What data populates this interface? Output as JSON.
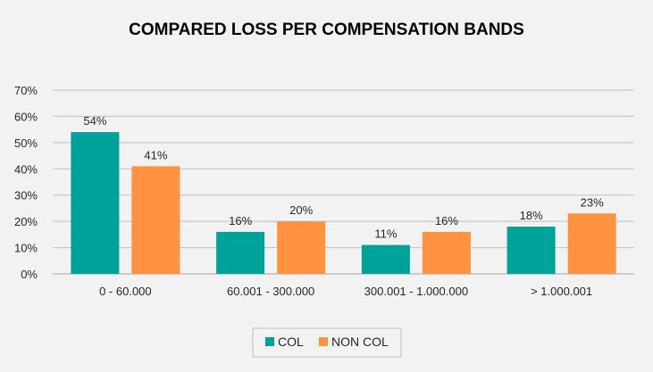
{
  "chart_data": {
    "type": "bar",
    "title": "COMPARED LOSS PER COMPENSATION BANDS",
    "categories": [
      "0 - 60.000",
      "60.001 - 300.000",
      "300.001 - 1.000.000",
      "> 1.000.001"
    ],
    "series": [
      {
        "name": "COL",
        "color": "#00a39a",
        "values": [
          54,
          16,
          11,
          18
        ],
        "labels": [
          "54%",
          "16%",
          "11%",
          "18%"
        ]
      },
      {
        "name": "NON COL",
        "color": "#ff9240",
        "values": [
          41,
          20,
          16,
          23
        ],
        "labels": [
          "41%",
          "20%",
          "16%",
          "23%"
        ]
      }
    ],
    "ylim": [
      0,
      70
    ],
    "yticks": [
      0,
      10,
      20,
      30,
      40,
      50,
      60,
      70
    ],
    "ytick_labels": [
      "0%",
      "10%",
      "20%",
      "30%",
      "40%",
      "50%",
      "60%",
      "70%"
    ],
    "grid": true,
    "legend_position": "bottom"
  }
}
